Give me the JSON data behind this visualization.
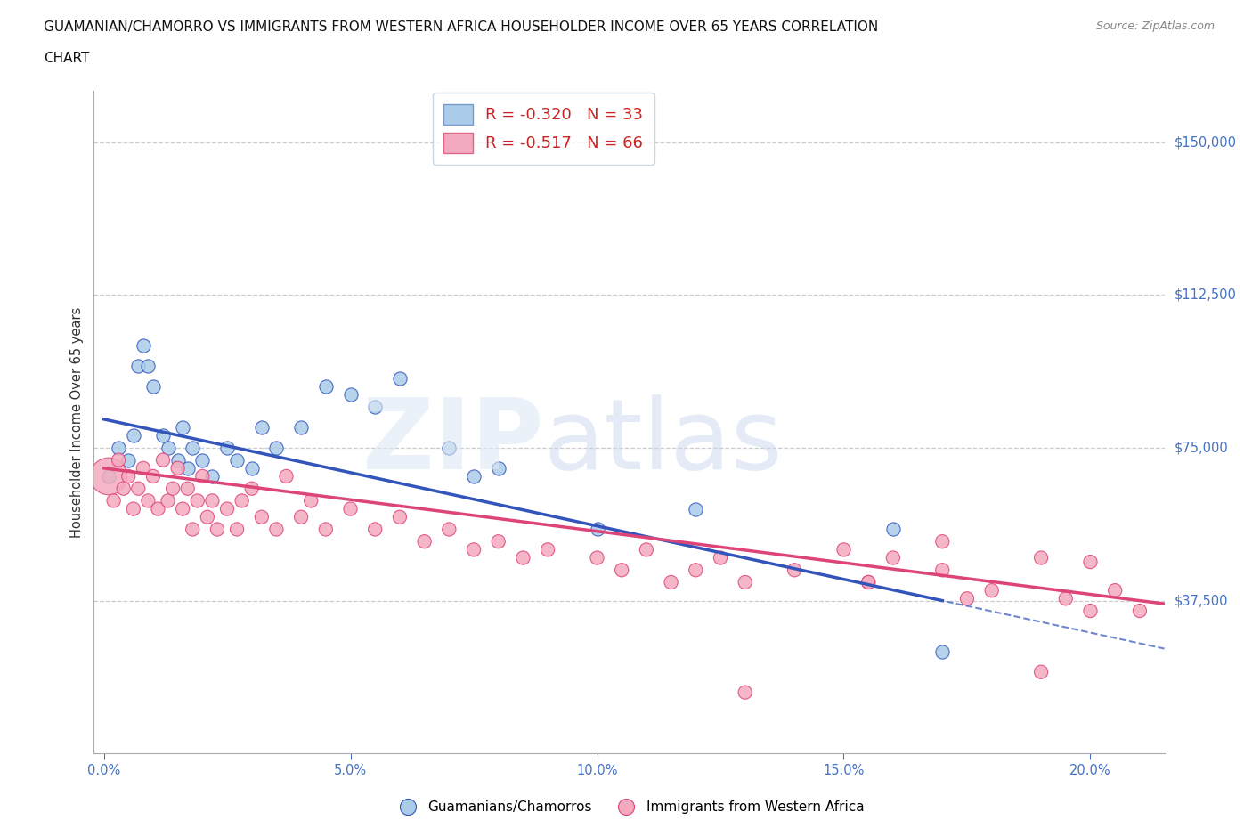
{
  "title_line1": "GUAMANIAN/CHAMORRO VS IMMIGRANTS FROM WESTERN AFRICA HOUSEHOLDER INCOME OVER 65 YEARS CORRELATION",
  "title_line2": "CHART",
  "source_text": "Source: ZipAtlas.com",
  "ylabel": "Householder Income Over 65 years",
  "xlabel_ticks": [
    "0.0%",
    "5.0%",
    "10.0%",
    "15.0%",
    "20.0%"
  ],
  "xlabel_tick_vals": [
    0.0,
    0.05,
    0.1,
    0.15,
    0.2
  ],
  "ytick_labels": [
    "$37,500",
    "$75,000",
    "$112,500",
    "$150,000"
  ],
  "ytick_vals": [
    37500,
    75000,
    112500,
    150000
  ],
  "ylim": [
    0,
    162500
  ],
  "xlim": [
    -0.002,
    0.215
  ],
  "legend_label1": "Guamanians/Chamorros",
  "legend_label2": "Immigrants from Western Africa",
  "R1": -0.32,
  "N1": 33,
  "R2": -0.517,
  "N2": 66,
  "blue_color": "#aacce8",
  "pink_color": "#f4aabe",
  "line_blue": "#3355bb",
  "line_pink": "#dd4477",
  "axis_color": "#4472c4",
  "blue_scatter_x": [
    0.001,
    0.003,
    0.005,
    0.006,
    0.007,
    0.008,
    0.009,
    0.01,
    0.012,
    0.013,
    0.015,
    0.016,
    0.017,
    0.018,
    0.02,
    0.022,
    0.025,
    0.027,
    0.03,
    0.032,
    0.035,
    0.04,
    0.045,
    0.05,
    0.055,
    0.06,
    0.07,
    0.075,
    0.08,
    0.1,
    0.12,
    0.16,
    0.17
  ],
  "blue_scatter_y": [
    68000,
    75000,
    72000,
    78000,
    95000,
    100000,
    95000,
    90000,
    78000,
    75000,
    72000,
    80000,
    70000,
    75000,
    72000,
    68000,
    75000,
    72000,
    70000,
    80000,
    75000,
    80000,
    90000,
    88000,
    85000,
    92000,
    75000,
    68000,
    70000,
    55000,
    60000,
    55000,
    25000
  ],
  "pink_scatter_x": [
    0.001,
    0.002,
    0.003,
    0.004,
    0.005,
    0.006,
    0.007,
    0.008,
    0.009,
    0.01,
    0.011,
    0.012,
    0.013,
    0.014,
    0.015,
    0.016,
    0.017,
    0.018,
    0.019,
    0.02,
    0.021,
    0.022,
    0.023,
    0.025,
    0.027,
    0.028,
    0.03,
    0.032,
    0.035,
    0.037,
    0.04,
    0.042,
    0.045,
    0.05,
    0.055,
    0.06,
    0.065,
    0.07,
    0.075,
    0.08,
    0.085,
    0.09,
    0.1,
    0.105,
    0.11,
    0.115,
    0.12,
    0.125,
    0.13,
    0.14,
    0.15,
    0.155,
    0.16,
    0.17,
    0.175,
    0.18,
    0.19,
    0.195,
    0.2,
    0.205,
    0.21,
    0.19,
    0.17,
    0.13,
    0.155,
    0.2
  ],
  "pink_scatter_y": [
    68000,
    62000,
    72000,
    65000,
    68000,
    60000,
    65000,
    70000,
    62000,
    68000,
    60000,
    72000,
    62000,
    65000,
    70000,
    60000,
    65000,
    55000,
    62000,
    68000,
    58000,
    62000,
    55000,
    60000,
    55000,
    62000,
    65000,
    58000,
    55000,
    68000,
    58000,
    62000,
    55000,
    60000,
    55000,
    58000,
    52000,
    55000,
    50000,
    52000,
    48000,
    50000,
    48000,
    45000,
    50000,
    42000,
    45000,
    48000,
    42000,
    45000,
    50000,
    42000,
    48000,
    45000,
    38000,
    40000,
    20000,
    38000,
    35000,
    40000,
    35000,
    48000,
    52000,
    15000,
    42000,
    47000
  ],
  "blue_marker_size": 120,
  "pink_marker_size": 120,
  "pink_big_idx": 0,
  "pink_big_size": 900,
  "line_blue_x_solid_end": 0.17,
  "line_blue_x_dash_start": 0.165,
  "line_blue_x_end": 0.215,
  "line_pink_x_end": 0.215,
  "line_start_x": 0.0
}
